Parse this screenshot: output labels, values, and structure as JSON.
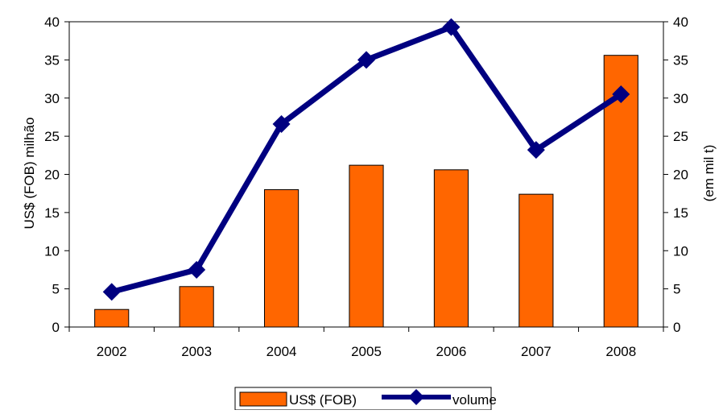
{
  "chart_data": {
    "type": "bar+line",
    "categories": [
      "2002",
      "2003",
      "2004",
      "2005",
      "2006",
      "2007",
      "2008"
    ],
    "series": [
      {
        "name": "US$ (FOB)",
        "type": "bar",
        "axis": "left",
        "color": "#FF6600",
        "values": [
          2.3,
          5.3,
          18.0,
          21.2,
          20.6,
          17.4,
          35.6
        ]
      },
      {
        "name": "volume",
        "type": "line",
        "axis": "right",
        "color": "#000080",
        "marker": "diamond",
        "values": [
          4.6,
          7.5,
          26.6,
          35.0,
          39.3,
          23.2,
          30.5
        ]
      }
    ],
    "ylabel": "US$ (FOB) milhão",
    "ylabel_right": "(em mil t)",
    "ylim": [
      0,
      40
    ],
    "ylim_right": [
      0,
      40
    ],
    "yticks": [
      "0",
      "5",
      "10",
      "15",
      "20",
      "25",
      "30",
      "35",
      "40"
    ],
    "grid": false,
    "legend_position": "bottom"
  }
}
